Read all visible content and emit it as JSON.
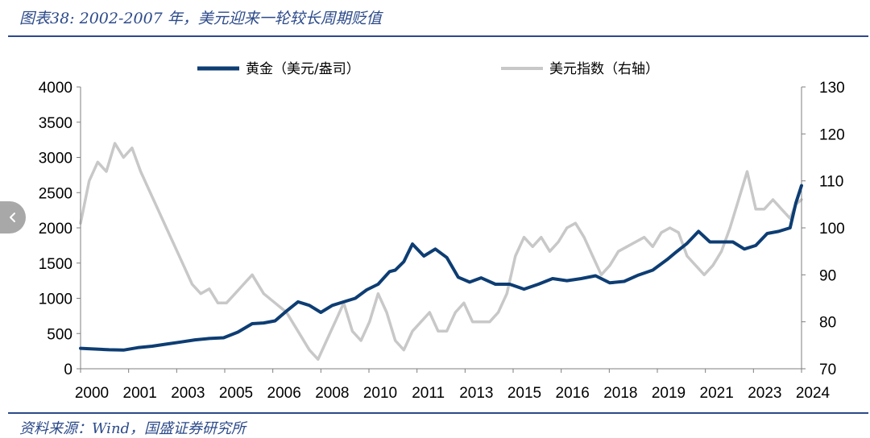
{
  "title": "图表38: 2002-2007 年，美元迎来一轮较长周期贬值",
  "source": "资料来源：Wind，国盛证券研究所",
  "nav": {
    "icon": "chevron-left-icon"
  },
  "colors": {
    "gold": "#0d3d73",
    "dollar": "#c8c8c8",
    "rule": "#2c4a8a"
  },
  "chart_data": {
    "type": "line",
    "title": "图表38: 2002-2007 年，美元迎来一轮较长周期贬值",
    "xlabel": "",
    "ylabel": "",
    "x_ticks": [
      "2000",
      "2001",
      "2003",
      "2005",
      "2006",
      "2008",
      "2010",
      "2011",
      "2013",
      "2015",
      "2016",
      "2018",
      "2019",
      "2021",
      "2023",
      "2024"
    ],
    "y_left": {
      "ticks": [
        "0",
        "500",
        "1000",
        "1500",
        "2000",
        "2500",
        "3000",
        "3500",
        "4000"
      ],
      "range": [
        0,
        4000
      ]
    },
    "y_right": {
      "ticks": [
        "70",
        "80",
        "90",
        "100",
        "110",
        "120",
        "130"
      ],
      "range": [
        70,
        130
      ]
    },
    "legend": {
      "placement": "top-center"
    },
    "series": [
      {
        "name": "黄金（美元/盎司）",
        "axis": "left",
        "x": [
          2000.0,
          2000.5,
          2001.0,
          2001.5,
          2002.0,
          2002.5,
          2003.0,
          2003.5,
          2004.0,
          2004.5,
          2005.0,
          2005.5,
          2006.0,
          2006.4,
          2006.8,
          2007.2,
          2007.6,
          2008.0,
          2008.4,
          2008.8,
          2009.2,
          2009.6,
          2010.0,
          2010.4,
          2010.8,
          2011.0,
          2011.3,
          2011.6,
          2012.0,
          2012.4,
          2012.8,
          2013.2,
          2013.6,
          2014.0,
          2014.5,
          2015.0,
          2015.5,
          2016.0,
          2016.5,
          2017.0,
          2017.5,
          2018.0,
          2018.5,
          2019.0,
          2019.5,
          2020.0,
          2020.5,
          2020.8,
          2021.2,
          2021.6,
          2022.0,
          2022.4,
          2022.8,
          2023.2,
          2023.6,
          2024.0,
          2024.4,
          2024.8,
          2025.0,
          2025.2
        ],
        "values": [
          290,
          280,
          270,
          265,
          300,
          320,
          350,
          380,
          410,
          430,
          440,
          520,
          640,
          650,
          680,
          820,
          950,
          900,
          800,
          900,
          950,
          1000,
          1120,
          1200,
          1380,
          1400,
          1520,
          1770,
          1600,
          1700,
          1580,
          1300,
          1230,
          1290,
          1200,
          1200,
          1130,
          1200,
          1280,
          1250,
          1280,
          1320,
          1220,
          1240,
          1330,
          1400,
          1550,
          1650,
          1780,
          1950,
          1800,
          1800,
          1800,
          1700,
          1750,
          1920,
          1950,
          2000,
          2350,
          2600
        ],
        "units": "USD/oz"
      },
      {
        "name": "美元指数（右轴）",
        "axis": "right",
        "x": [
          2000.0,
          2000.3,
          2000.6,
          2000.9,
          2001.2,
          2001.5,
          2001.8,
          2002.1,
          2002.4,
          2002.7,
          2003.0,
          2003.3,
          2003.6,
          2003.9,
          2004.2,
          2004.5,
          2004.8,
          2005.1,
          2005.4,
          2005.7,
          2006.0,
          2006.4,
          2006.8,
          2007.2,
          2007.6,
          2008.0,
          2008.3,
          2008.6,
          2008.9,
          2009.2,
          2009.5,
          2009.8,
          2010.1,
          2010.4,
          2010.7,
          2011.0,
          2011.3,
          2011.6,
          2011.9,
          2012.2,
          2012.5,
          2012.8,
          2013.1,
          2013.4,
          2013.7,
          2014.0,
          2014.3,
          2014.6,
          2014.9,
          2015.2,
          2015.5,
          2015.8,
          2016.1,
          2016.4,
          2016.7,
          2017.0,
          2017.3,
          2017.6,
          2017.9,
          2018.2,
          2018.5,
          2018.8,
          2019.1,
          2019.4,
          2019.7,
          2020.0,
          2020.3,
          2020.6,
          2020.9,
          2021.2,
          2021.5,
          2021.8,
          2022.1,
          2022.4,
          2022.7,
          2023.0,
          2023.3,
          2023.6,
          2023.9,
          2024.2,
          2024.5,
          2024.8,
          2025.0,
          2025.2
        ],
        "values": [
          101,
          110,
          114,
          112,
          118,
          115,
          117,
          112,
          108,
          104,
          100,
          96,
          92,
          88,
          86,
          87,
          84,
          84,
          86,
          88,
          90,
          86,
          84,
          82,
          78,
          74,
          72,
          76,
          80,
          84,
          78,
          76,
          80,
          86,
          82,
          76,
          74,
          78,
          80,
          82,
          78,
          78,
          82,
          84,
          80,
          80,
          80,
          82,
          86,
          94,
          98,
          96,
          98,
          95,
          97,
          100,
          101,
          98,
          94,
          90,
          92,
          95,
          96,
          97,
          98,
          96,
          99,
          100,
          99,
          94,
          92,
          90,
          92,
          95,
          100,
          106,
          112,
          104,
          104,
          106,
          104,
          102,
          105,
          106
        ]
      }
    ]
  },
  "legend_items": [
    {
      "label": "黄金（美元/盎司）"
    },
    {
      "label": "美元指数（右轴）"
    }
  ]
}
